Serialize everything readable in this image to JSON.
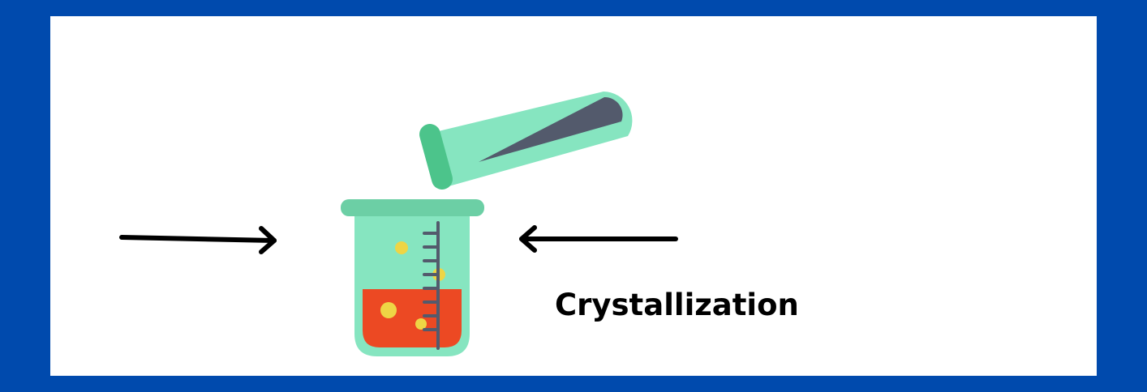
{
  "label": "Crystallization",
  "colors": {
    "border": "#004aad",
    "background": "#ffffff",
    "glass": "#86e5c0",
    "glass_rim": "#6ccfa5",
    "tube_cap": "#4cc48b",
    "dark_liquid": "#535a6c",
    "red_liquid": "#ec4923",
    "crystal": "#eed545",
    "scale_marks": "#535a6c",
    "arrow": "#000000"
  },
  "icons": {
    "test_tube": "test-tube-icon",
    "beaker": "beaker-icon",
    "left_arrow": "arrow-right-icon",
    "right_arrow": "arrow-left-icon"
  }
}
